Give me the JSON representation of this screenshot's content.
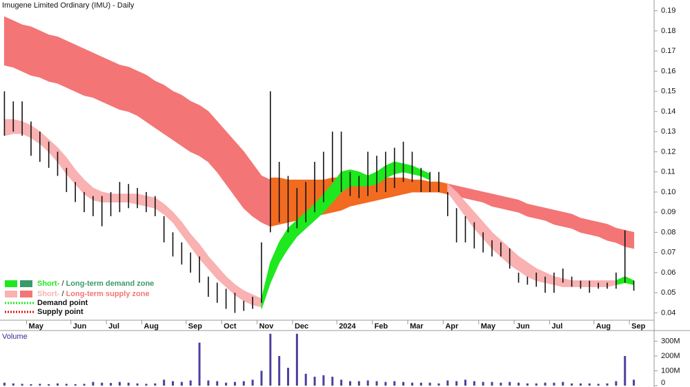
{
  "chart_data": {
    "type": "ohlc",
    "title": "Imugene Limited Ordinary (IMU) - Daily",
    "categories": [
      null,
      null,
      null,
      "May",
      null,
      null,
      null,
      null,
      "Jun",
      null,
      null,
      null,
      "Jul",
      null,
      null,
      null,
      "Aug",
      null,
      null,
      null,
      null,
      "Sep",
      null,
      null,
      null,
      "Oct",
      null,
      null,
      null,
      "Nov",
      null,
      null,
      null,
      "Dec",
      null,
      null,
      null,
      null,
      "2024",
      null,
      null,
      null,
      "Feb",
      null,
      null,
      null,
      "Mar",
      null,
      null,
      null,
      "Apr",
      null,
      null,
      null,
      "May",
      null,
      null,
      null,
      "Jun",
      null,
      null,
      null,
      "Jul",
      null,
      null,
      null,
      null,
      "Aug",
      null,
      null,
      null,
      "Sep"
    ],
    "high": [
      0.15,
      0.145,
      0.145,
      0.135,
      0.13,
      0.125,
      0.12,
      0.112,
      0.105,
      0.1,
      0.098,
      0.098,
      0.1,
      0.105,
      0.104,
      0.102,
      0.1,
      0.098,
      0.088,
      0.08,
      0.075,
      0.07,
      0.068,
      0.058,
      0.055,
      0.052,
      0.05,
      0.046,
      0.048,
      0.075,
      0.15,
      0.115,
      0.108,
      0.102,
      0.105,
      0.115,
      0.12,
      0.13,
      0.13,
      0.11,
      0.108,
      0.12,
      0.118,
      0.12,
      0.122,
      0.125,
      0.12,
      0.112,
      0.11,
      0.11,
      0.1,
      0.092,
      0.088,
      0.085,
      0.08,
      0.076,
      0.075,
      0.072,
      0.06,
      0.058,
      0.06,
      0.058,
      0.06,
      0.062,
      0.058,
      0.056,
      0.056,
      0.055,
      0.055,
      0.06,
      0.081,
      0.056
    ],
    "low": [
      0.128,
      0.13,
      0.128,
      0.118,
      0.115,
      0.112,
      0.108,
      0.1,
      0.095,
      0.09,
      0.088,
      0.083,
      0.088,
      0.09,
      0.092,
      0.092,
      0.09,
      0.088,
      0.075,
      0.068,
      0.064,
      0.06,
      0.055,
      0.048,
      0.045,
      0.042,
      0.04,
      0.041,
      0.042,
      0.045,
      0.08,
      0.085,
      0.08,
      0.082,
      0.085,
      0.09,
      0.095,
      0.105,
      0.1,
      0.098,
      0.097,
      0.098,
      0.1,
      0.1,
      0.102,
      0.105,
      0.105,
      0.1,
      0.1,
      0.1,
      0.088,
      0.075,
      0.075,
      0.072,
      0.07,
      0.068,
      0.068,
      0.062,
      0.055,
      0.054,
      0.053,
      0.05,
      0.05,
      0.055,
      0.053,
      0.052,
      0.05,
      0.052,
      0.052,
      0.052,
      0.055,
      0.051
    ],
    "ylim": [
      0.035,
      0.195
    ],
    "yticks": [
      0.04,
      0.05,
      0.06,
      0.07,
      0.08,
      0.09,
      {
        "value": 0.1,
        "label": "0.10"
      },
      0.11,
      0.12,
      0.13,
      0.14,
      0.15,
      0.16,
      0.17,
      0.18,
      0.19
    ],
    "zones": [
      {
        "color": "#f47575",
        "upper": [
          0.187,
          0.185,
          0.183,
          0.182,
          0.18,
          0.178,
          0.177,
          0.175,
          0.173,
          0.171,
          0.169,
          0.167,
          0.165,
          0.163,
          0.162,
          0.16,
          0.158,
          0.155,
          0.153,
          0.15,
          0.148,
          0.145,
          0.143,
          0.14,
          0.135,
          0.13,
          0.125,
          0.12,
          0.114,
          0.108,
          0.106,
          null,
          null,
          null,
          null,
          null,
          null,
          null,
          null,
          null,
          null,
          null,
          null,
          null,
          null,
          null,
          null,
          null,
          null,
          null,
          0.104,
          0.103,
          0.102,
          0.101,
          0.1,
          0.099,
          0.098,
          0.097,
          0.096,
          0.094,
          0.093,
          0.092,
          0.091,
          0.09,
          0.089,
          0.087,
          0.086,
          0.085,
          0.084,
          0.082,
          0.081,
          0.08
        ],
        "lower": [
          0.163,
          0.162,
          0.16,
          0.158,
          0.157,
          0.155,
          0.154,
          0.152,
          0.15,
          0.148,
          0.147,
          0.145,
          0.143,
          0.141,
          0.14,
          0.138,
          0.135,
          0.132,
          0.129,
          0.126,
          0.123,
          0.12,
          0.118,
          0.115,
          0.11,
          0.104,
          0.098,
          0.092,
          0.088,
          0.085,
          0.083,
          null,
          null,
          null,
          null,
          null,
          null,
          null,
          null,
          null,
          null,
          null,
          null,
          null,
          null,
          null,
          null,
          null,
          null,
          null,
          0.099,
          0.098,
          0.097,
          0.096,
          0.095,
          0.093,
          0.092,
          0.091,
          0.09,
          0.088,
          0.087,
          0.086,
          0.084,
          0.083,
          0.082,
          0.08,
          0.079,
          0.078,
          0.076,
          0.075,
          0.073,
          0.072
        ]
      },
      {
        "color": "#f26b21",
        "upper": [
          null,
          null,
          null,
          null,
          null,
          null,
          null,
          null,
          null,
          null,
          null,
          null,
          null,
          null,
          null,
          null,
          null,
          null,
          null,
          null,
          null,
          null,
          null,
          null,
          null,
          null,
          null,
          null,
          null,
          null,
          0.107,
          0.107,
          0.106,
          0.106,
          0.106,
          0.106,
          0.106,
          0.107,
          0.107,
          0.107,
          0.107,
          0.107,
          0.107,
          0.107,
          0.107,
          0.107,
          0.106,
          0.106,
          0.105,
          0.105,
          0.104,
          null,
          null,
          null,
          null,
          null,
          null,
          null,
          null,
          null,
          null,
          null,
          null,
          null,
          null,
          null,
          null,
          null,
          null,
          null,
          null,
          null
        ],
        "lower": [
          null,
          null,
          null,
          null,
          null,
          null,
          null,
          null,
          null,
          null,
          null,
          null,
          null,
          null,
          null,
          null,
          null,
          null,
          null,
          null,
          null,
          null,
          null,
          null,
          null,
          null,
          null,
          null,
          null,
          null,
          0.083,
          0.084,
          0.085,
          0.086,
          0.087,
          0.088,
          0.089,
          0.09,
          0.091,
          0.093,
          0.094,
          0.095,
          0.096,
          0.097,
          0.098,
          0.099,
          0.1,
          0.1,
          0.1,
          0.1,
          0.099,
          null,
          null,
          null,
          null,
          null,
          null,
          null,
          null,
          null,
          null,
          null,
          null,
          null,
          null,
          null,
          null,
          null,
          null,
          null,
          null,
          null
        ]
      },
      {
        "color": "#f9b1b1",
        "upper": [
          0.136,
          0.136,
          0.135,
          0.133,
          0.13,
          0.126,
          0.122,
          0.117,
          0.111,
          0.106,
          0.102,
          0.1,
          0.099,
          0.099,
          0.099,
          0.099,
          0.098,
          0.097,
          0.094,
          0.09,
          0.085,
          0.079,
          0.074,
          0.068,
          0.063,
          0.058,
          0.054,
          0.051,
          0.049,
          0.047,
          null,
          null,
          null,
          null,
          null,
          null,
          null,
          null,
          null,
          null,
          null,
          null,
          null,
          null,
          null,
          null,
          null,
          null,
          null,
          null,
          0.104,
          0.1,
          0.095,
          0.09,
          0.085,
          0.08,
          0.076,
          0.072,
          0.068,
          0.065,
          0.062,
          0.06,
          0.058,
          0.057,
          0.056,
          0.056,
          0.056,
          0.056,
          0.056,
          0.056,
          null,
          null
        ],
        "lower": [
          0.128,
          0.129,
          0.129,
          0.127,
          0.124,
          0.12,
          0.115,
          0.109,
          0.104,
          0.099,
          0.096,
          0.095,
          0.095,
          0.095,
          0.095,
          0.094,
          0.093,
          0.092,
          0.089,
          0.085,
          0.079,
          0.073,
          0.067,
          0.062,
          0.057,
          0.053,
          0.049,
          0.046,
          0.044,
          0.043,
          null,
          null,
          null,
          null,
          null,
          null,
          null,
          null,
          null,
          null,
          null,
          null,
          null,
          null,
          null,
          null,
          null,
          null,
          null,
          null,
          0.1,
          0.094,
          0.088,
          0.082,
          0.077,
          0.072,
          0.068,
          0.064,
          0.061,
          0.058,
          0.056,
          0.055,
          0.054,
          0.053,
          0.053,
          0.053,
          0.053,
          0.053,
          0.053,
          0.054,
          null,
          null
        ]
      },
      {
        "color": "#1ee81e",
        "upper": [
          null,
          null,
          null,
          null,
          null,
          null,
          null,
          null,
          null,
          null,
          null,
          null,
          null,
          null,
          null,
          null,
          null,
          null,
          null,
          null,
          null,
          null,
          null,
          null,
          null,
          null,
          null,
          null,
          null,
          0.047,
          0.065,
          0.075,
          0.082,
          0.086,
          0.09,
          0.094,
          0.099,
          0.104,
          0.11,
          0.111,
          0.11,
          0.108,
          0.11,
          0.113,
          0.115,
          0.114,
          0.113,
          0.111,
          0.109,
          null,
          null,
          null,
          null,
          null,
          null,
          null,
          null,
          null,
          null,
          null,
          null,
          null,
          null,
          null,
          null,
          null,
          null,
          null,
          null,
          0.056,
          0.058,
          0.056
        ],
        "lower": [
          null,
          null,
          null,
          null,
          null,
          null,
          null,
          null,
          null,
          null,
          null,
          null,
          null,
          null,
          null,
          null,
          null,
          null,
          null,
          null,
          null,
          null,
          null,
          null,
          null,
          null,
          null,
          null,
          null,
          0.042,
          0.055,
          0.065,
          0.072,
          0.078,
          0.082,
          0.086,
          0.09,
          0.095,
          0.1,
          0.103,
          0.103,
          0.103,
          0.104,
          0.107,
          0.109,
          0.11,
          0.109,
          0.108,
          0.106,
          null,
          null,
          null,
          null,
          null,
          null,
          null,
          null,
          null,
          null,
          null,
          null,
          null,
          null,
          null,
          null,
          null,
          null,
          null,
          null,
          0.054,
          0.055,
          0.054
        ]
      }
    ],
    "legend": [
      {
        "colors": [
          "#1ee81e",
          "#3a9a6a"
        ],
        "short": "Short-",
        "sep": " / ",
        "long": "Long-term demand zone"
      },
      {
        "colors": [
          "#f9b1b1",
          "#f47575"
        ],
        "short": "Short-",
        "sep": " / ",
        "long": "Long-term supply zone"
      },
      {
        "color": "#1ee81e",
        "label": "Demand point"
      },
      {
        "color": "#e01010",
        "label": "Supply point"
      }
    ],
    "volume": {
      "title": "Volume",
      "color": "#4b3fa0",
      "values": [
        20,
        15,
        12,
        10,
        12,
        10,
        15,
        12,
        10,
        12,
        25,
        20,
        18,
        25,
        20,
        15,
        12,
        15,
        40,
        30,
        25,
        35,
        290,
        35,
        30,
        20,
        25,
        30,
        40,
        100,
        350,
        200,
        120,
        350,
        80,
        60,
        70,
        60,
        40,
        30,
        30,
        35,
        30,
        25,
        30,
        25,
        20,
        20,
        20,
        15,
        35,
        30,
        40,
        30,
        25,
        25,
        20,
        25,
        20,
        15,
        15,
        20,
        20,
        25,
        15,
        15,
        15,
        12,
        15,
        30,
        200,
        40
      ],
      "ylim": [
        0,
        330
      ],
      "yticks": [
        0,
        {
          "value": 100,
          "label": "100M"
        },
        {
          "value": 200,
          "label": "200M"
        },
        {
          "value": 300,
          "label": "300M"
        }
      ]
    }
  }
}
